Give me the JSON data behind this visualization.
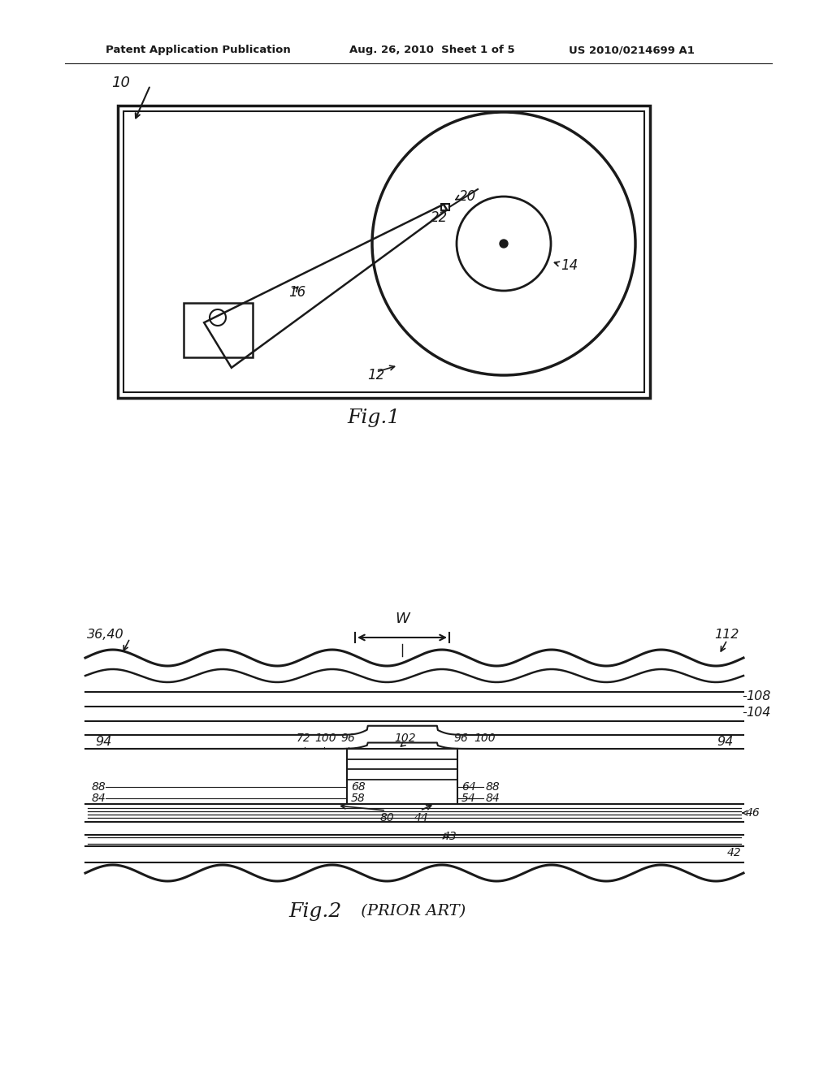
{
  "bg_color": "#ffffff",
  "line_color": "#1a1a1a",
  "header_left": "Patent Application Publication",
  "header_mid": "Aug. 26, 2010  Sheet 1 of 5",
  "header_right": "US 2010/0214699 A1",
  "fig1_label": "Fig.1",
  "fig2_label": "Fig.2",
  "fig2_label2": " (PRIOR ART)",
  "lbl_10": "10",
  "lbl_12": "12",
  "lbl_14": "14",
  "lbl_16": "16",
  "lbl_20": "20",
  "lbl_22": "22",
  "lbl_36_40": "36,40",
  "lbl_112": "112",
  "lbl_108": "108",
  "lbl_104": "104",
  "lbl_94a": "94",
  "lbl_94b": "94",
  "lbl_72": "72",
  "lbl_100a": "100",
  "lbl_96a": "96",
  "lbl_102": "102",
  "lbl_96b": "96",
  "lbl_100b": "100",
  "lbl_88a": "88",
  "lbl_84a": "84",
  "lbl_58": "58",
  "lbl_68": "68",
  "lbl_64": "64",
  "lbl_54": "54",
  "lbl_84b": "84",
  "lbl_88b": "88",
  "lbl_80": "80",
  "lbl_44": "44",
  "lbl_46": "46",
  "lbl_43": "43",
  "lbl_42": "42",
  "lbl_W": "W"
}
